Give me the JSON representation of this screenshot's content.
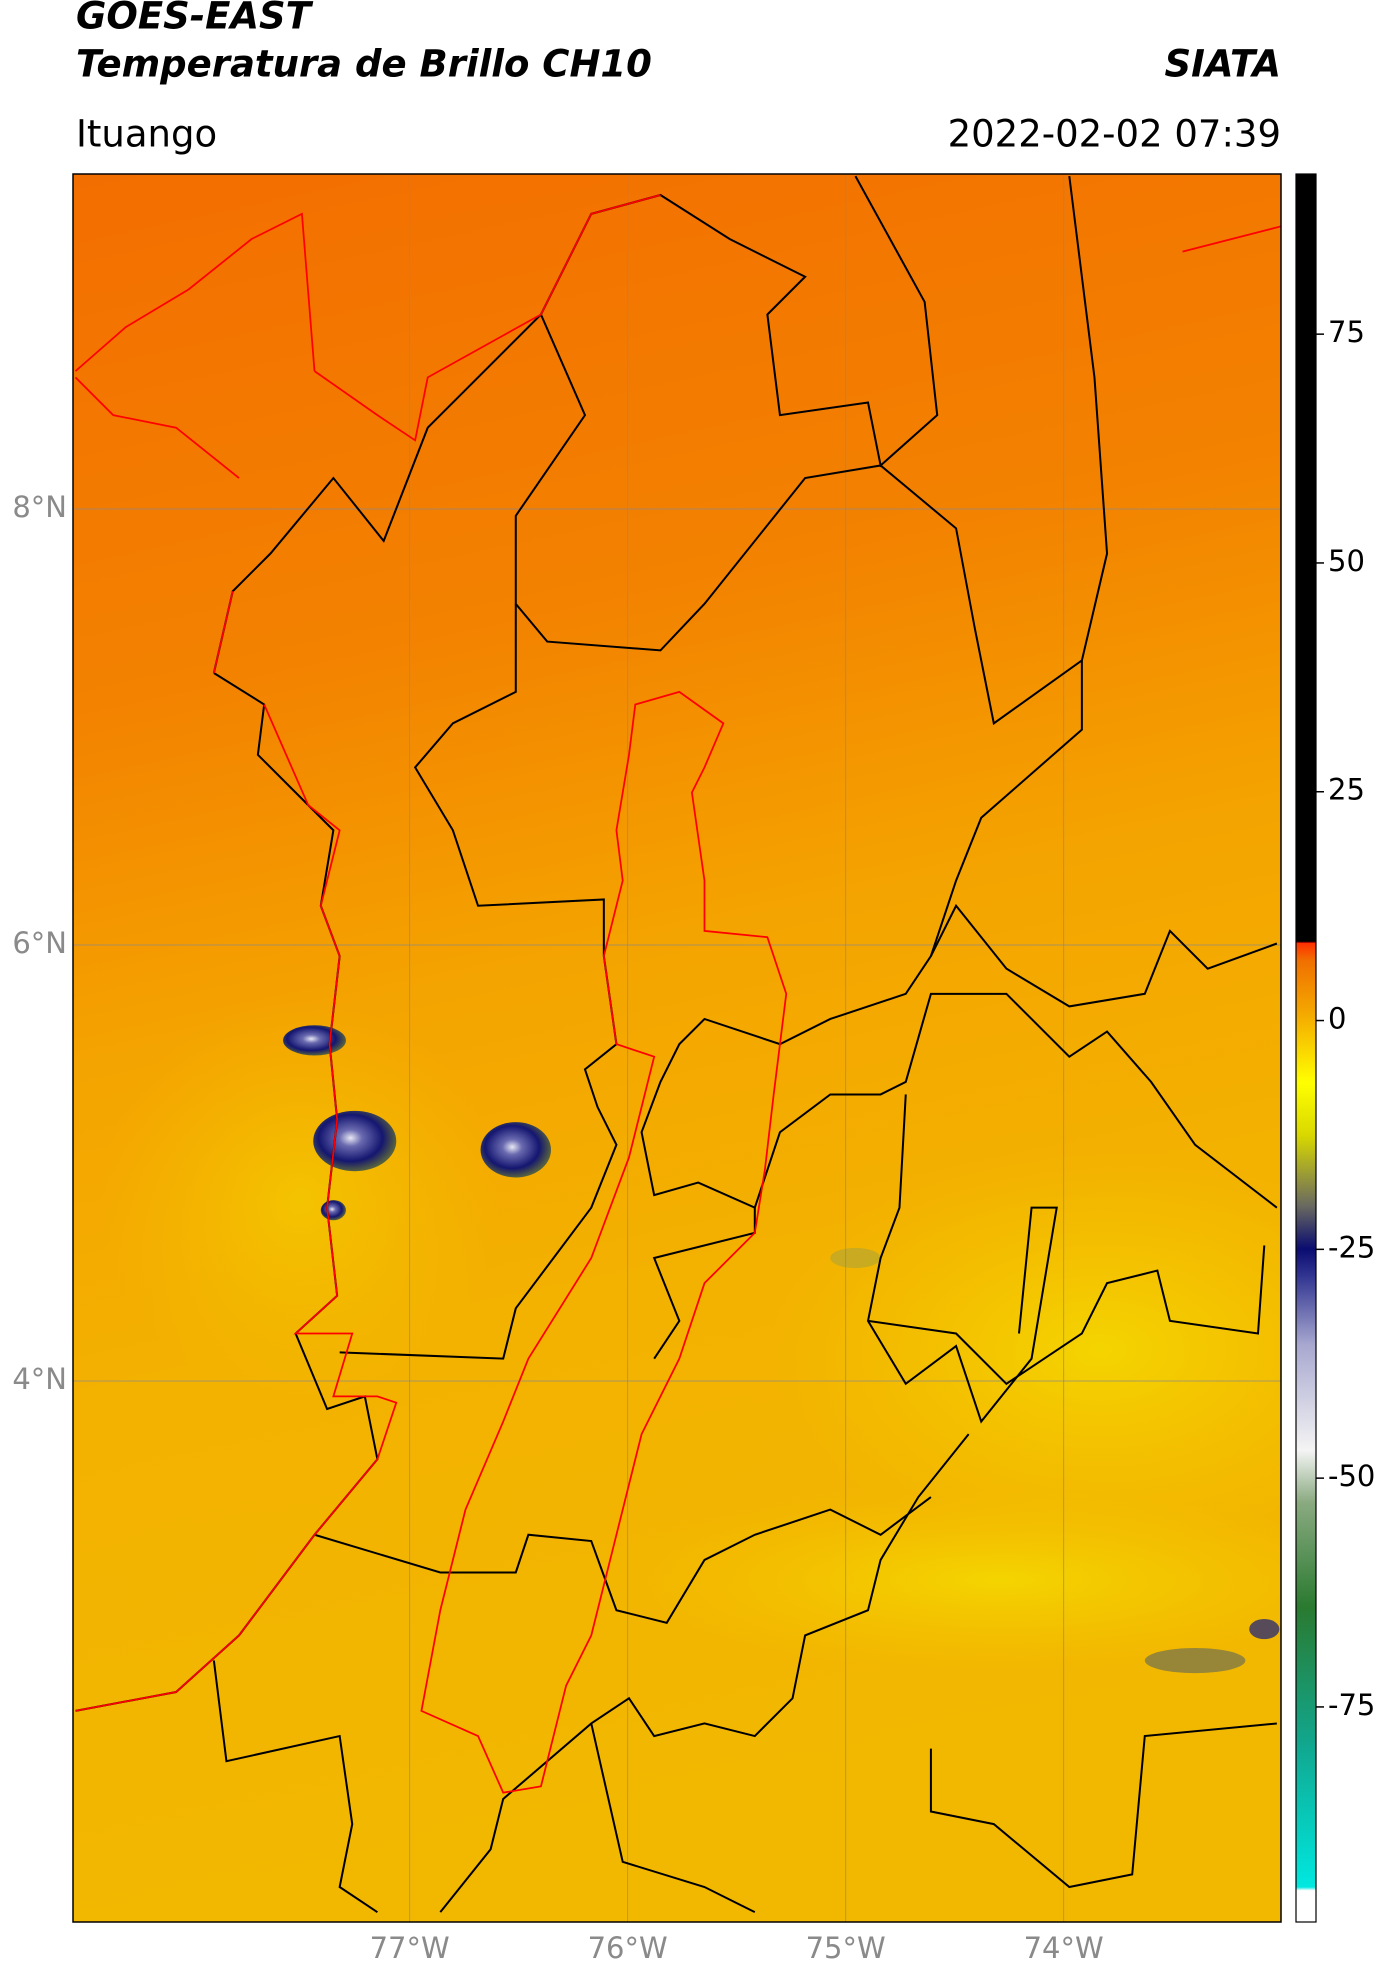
{
  "chart_data": {
    "type": "map",
    "title": "GOES-EAST",
    "subtitle": "Temperatura de Brillo CH10",
    "source": "SIATA",
    "location": "Ituango",
    "timestamp": "2022-02-02 07:39",
    "xlim": [
      -78.544,
      -73.003
    ],
    "ylim": [
      1.518,
      9.537
    ],
    "xticks": [
      {
        "value": -77,
        "label": "77°W"
      },
      {
        "value": -76,
        "label": "76°W"
      },
      {
        "value": -75,
        "label": "75°W"
      },
      {
        "value": -74,
        "label": "74°W"
      }
    ],
    "yticks": [
      {
        "value": 8,
        "label": "8°N"
      },
      {
        "value": 6,
        "label": "6°N"
      },
      {
        "value": 4,
        "label": "4°N"
      }
    ],
    "grid": true,
    "colorbar_lim": [
      -98.5,
      92.5
    ],
    "colorbar_ticks": [
      75,
      50,
      25,
      0,
      -25,
      -50,
      -75
    ]
  }
}
